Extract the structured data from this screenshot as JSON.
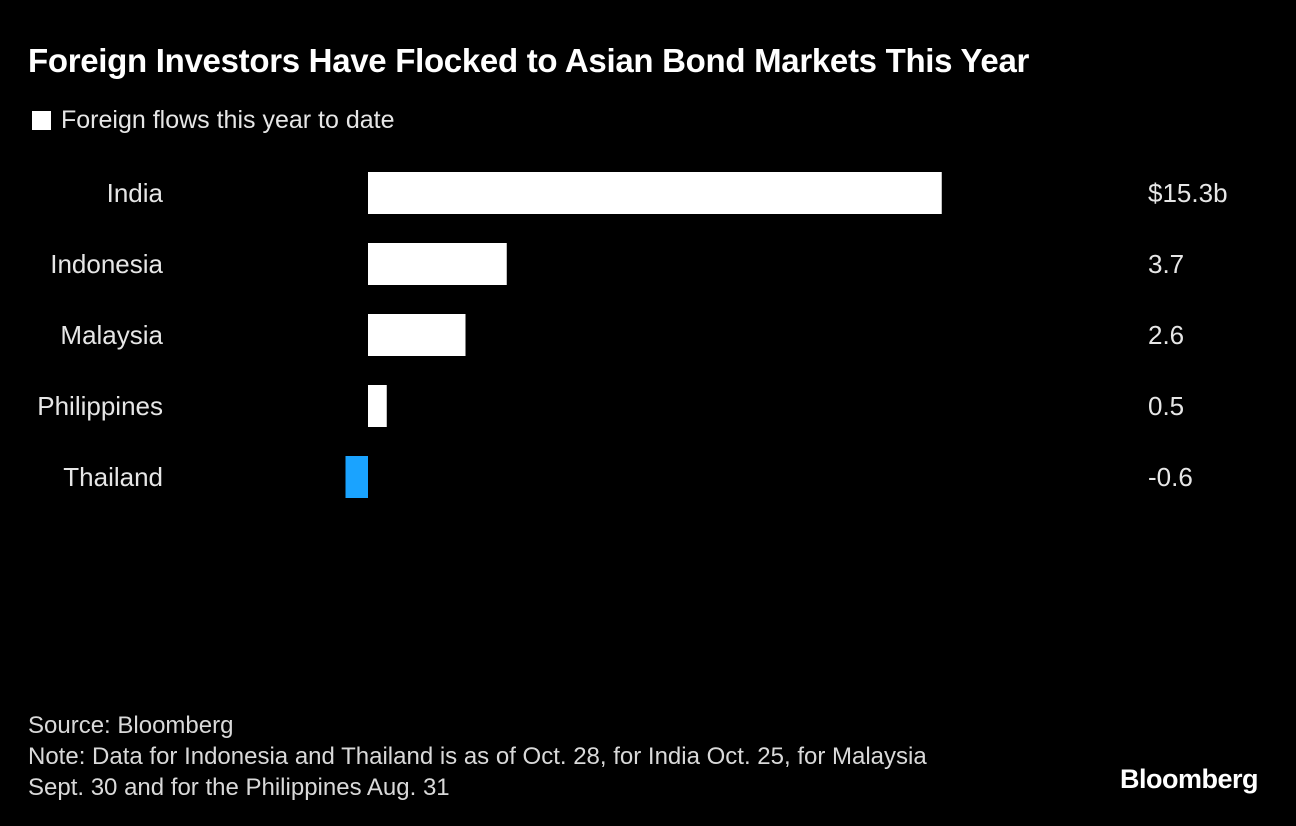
{
  "title": "Foreign Investors Have Flocked to Asian Bond Markets This Year",
  "legend": {
    "label": "Foreign flows this year to date"
  },
  "chart_data": {
    "type": "bar",
    "orientation": "horizontal",
    "categories": [
      "India",
      "Indonesia",
      "Malaysia",
      "Philippines",
      "Thailand"
    ],
    "series": [
      {
        "name": "Foreign flows this year to date",
        "values": [
          15.3,
          3.7,
          2.6,
          0.5,
          -0.6
        ]
      }
    ],
    "value_labels": [
      "$15.3b",
      "3.7",
      "2.6",
      "0.5",
      "-0.6"
    ],
    "colors": {
      "positive": "#ffffff",
      "negative": "#1aa3ff"
    },
    "grid": false
  },
  "footer": {
    "source": "Source: Bloomberg",
    "note": "Note: Data for Indonesia and Thailand is as of Oct. 28, for India Oct. 25, for Malaysia Sept. 30 and for the Philippines Aug. 31"
  },
  "brand": "Bloomberg"
}
